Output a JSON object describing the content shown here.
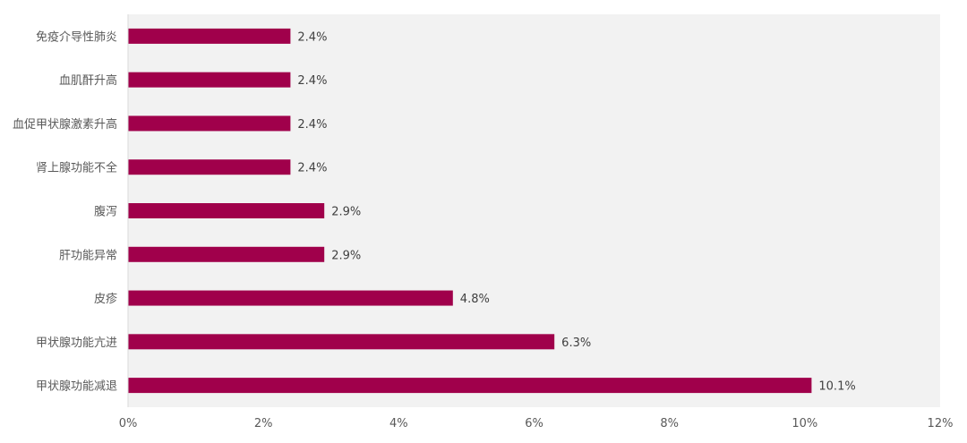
{
  "chart_data": {
    "type": "bar",
    "orientation": "horizontal",
    "categories": [
      "免疫介导性肺炎",
      "血肌酐升高",
      "血促甲状腺激素升高",
      "肾上腺功能不全",
      "腹泻",
      "肝功能异常",
      "皮疹",
      "甲状腺功能亢进",
      "甲状腺功能减退"
    ],
    "values": [
      2.4,
      2.4,
      2.4,
      2.4,
      2.9,
      2.9,
      4.8,
      6.3,
      10.1
    ],
    "data_labels": [
      "2.4%",
      "2.4%",
      "2.4%",
      "2.4%",
      "2.9%",
      "2.9%",
      "4.8%",
      "6.3%",
      "10.1%"
    ],
    "x_ticks": [
      "0%",
      "2%",
      "4%",
      "6%",
      "8%",
      "10%",
      "12%"
    ],
    "xlim": [
      0,
      12
    ],
    "title": "",
    "xlabel": "",
    "ylabel": "",
    "grid": false,
    "legend": "none",
    "colors": {
      "bar": "#a0004b",
      "plot_background": "#f2f2f2",
      "text": "#595959"
    }
  }
}
